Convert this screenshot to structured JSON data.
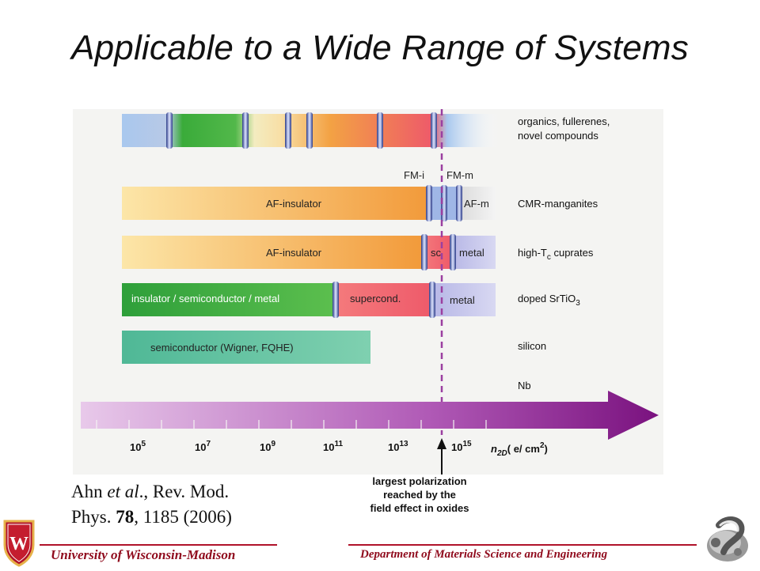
{
  "slide": {
    "title": "Applicable to a Wide Range of Systems",
    "citation_line1_pre": "Ahn ",
    "citation_line1_em": "et al",
    "citation_line1_post": "., Rev. Mod.",
    "citation_line2_pre": "Phys. ",
    "citation_line2_bold": "78",
    "citation_line2_post": ", 1185 (2006)",
    "footer_left": "University  of Wisconsin-Madison",
    "footer_right": "Department of Materials Science and Engineering",
    "crest_letter": "W"
  },
  "diagram": {
    "rows": [
      {
        "system": "organics, fullerenes,",
        "system2": "novel compounds",
        "segments": []
      },
      {
        "system": "CMR-manganites",
        "segments": [
          "AF-insulator",
          "AF-m"
        ],
        "top_labels": [
          "FM-i",
          "FM-m"
        ]
      },
      {
        "system": "high-T",
        "system_sub": "c",
        "system_post": " cuprates",
        "segments": [
          "AF-insulator",
          "sc",
          "metal"
        ]
      },
      {
        "system": "doped SrTiO",
        "system_sub": "3",
        "segments": [
          "insulator / semiconductor / metal",
          "supercond.",
          "metal"
        ]
      },
      {
        "system": "silicon",
        "segments": [
          "semiconductor (Wigner, FQHE)"
        ]
      },
      {
        "system": "Nb",
        "segments": []
      }
    ],
    "axis": {
      "ticks": [
        "10",
        "10",
        "10",
        "10",
        "10",
        "10"
      ],
      "exponents": [
        "5",
        "7",
        "9",
        "11",
        "13",
        "15"
      ],
      "unit_label": "n",
      "unit_sub": "2D",
      "unit_rest": "( e/ cm",
      "unit_sup": "2",
      "unit_close": ")"
    },
    "annotation": [
      "largest polarization",
      "reached by the",
      "field effect in oxides"
    ],
    "colors": {
      "green": "#3aab3a",
      "orange": "#f29a3a",
      "red": "#ee5a6a",
      "blue": "#a9c8ee",
      "lavender": "#b7b7e6",
      "teal": "#5bbf9e",
      "purple": "#8a1f8f",
      "accent": "#b0122a"
    }
  }
}
